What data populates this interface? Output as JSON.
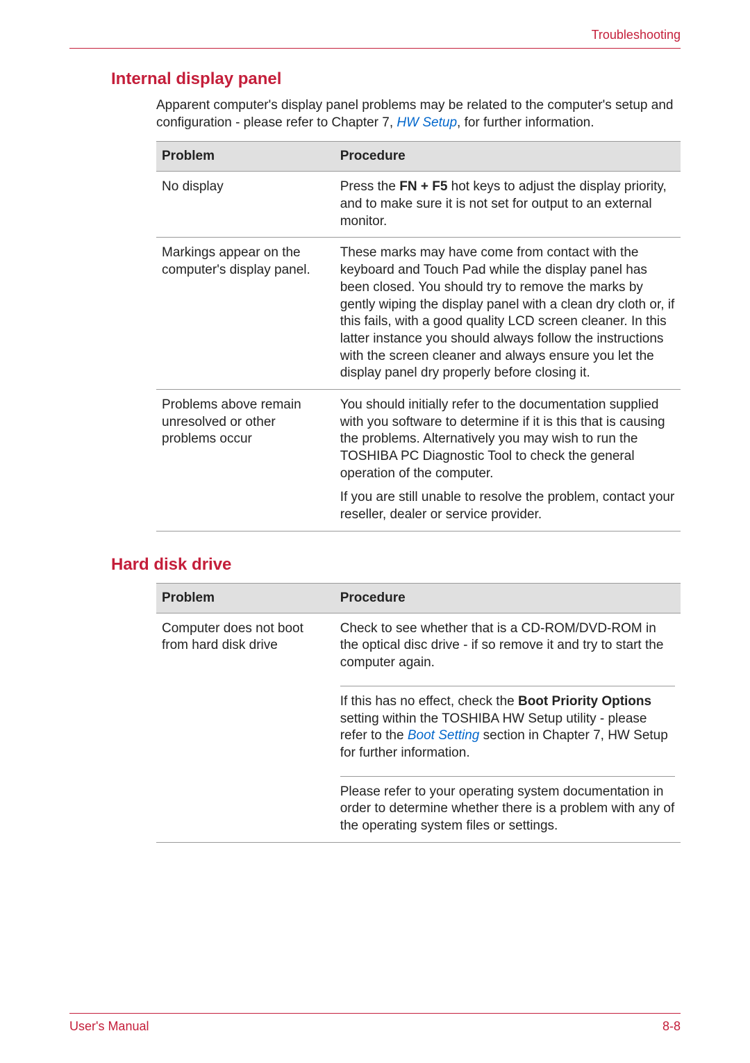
{
  "header": {
    "title": "Troubleshooting"
  },
  "section1": {
    "title": "Internal display panel",
    "intro_prefix": "Apparent computer's display panel problems may be related to the computer's setup and configuration - please refer to Chapter 7, ",
    "intro_link": "HW Setup",
    "intro_suffix": ", for further information.",
    "head_problem": "Problem",
    "head_procedure": "Procedure",
    "rows": [
      {
        "problem": "No display",
        "proc_pre": "Press the ",
        "proc_bold": "FN + F5",
        "proc_post": " hot keys to adjust the display priority, and to make sure it is not set for output to an external monitor."
      },
      {
        "problem": "Markings appear on the computer's display panel.",
        "proc1": "These marks may have come from contact with the keyboard and Touch Pad while the display panel has been closed. You should try to remove the marks by gently wiping the display panel with a clean dry cloth or, if this fails, with a good quality LCD screen cleaner. In this latter instance you should always follow the instructions with the screen cleaner and always ensure you let the display panel dry properly before closing it."
      },
      {
        "problem": "Problems above remain unresolved or other problems occur",
        "proc1": "You should initially refer to the documentation supplied with you software to determine if it is this that is causing the problems. Alternatively you may wish to run the TOSHIBA PC Diagnostic Tool to check the general operation of the computer.",
        "proc2": "If you are still unable to resolve the problem, contact your reseller, dealer or service provider."
      }
    ]
  },
  "section2": {
    "title": "Hard disk drive",
    "head_problem": "Problem",
    "head_procedure": "Procedure",
    "row1": {
      "problem": "Computer does not boot from hard disk drive",
      "p1": "Check to see whether that is a CD-ROM/DVD-ROM in the optical disc drive - if so remove it and try to start the computer again.",
      "p2_pre": "If this has no effect, check the ",
      "p2_bold": "Boot Priority Options",
      "p2_mid": " setting within the TOSHIBA HW Setup utility - please refer to the ",
      "p2_link": "Boot Setting",
      "p2_post": " section in Chapter 7, HW Setup for further information.",
      "p3": "Please refer to your operating system documentation in order to determine whether there is a problem with any of the operating system files or settings."
    }
  },
  "footer": {
    "left": "User's Manual",
    "right": "8-8"
  }
}
